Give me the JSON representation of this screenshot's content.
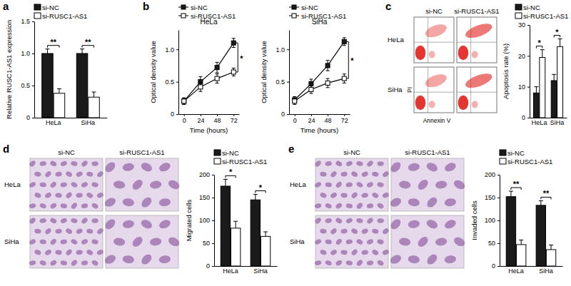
{
  "panels": [
    "a",
    "b",
    "c",
    "d",
    "e"
  ],
  "chart_data": [
    {
      "type": "bar",
      "categories": [
        "HeLa",
        "SiHa"
      ],
      "ylabel": "Relative RUSC1-AS1 expression",
      "series": [
        {
          "name": "si-NC",
          "color": "#1a1a1a",
          "values": [
            1.0,
            1.0
          ],
          "errors": [
            0.07,
            0.07
          ]
        },
        {
          "name": "si-RUSC1-AS1",
          "color": "#ffffff",
          "values": [
            0.38,
            0.32
          ],
          "errors": [
            0.07,
            0.08
          ]
        }
      ],
      "ylim": [
        0,
        1.5
      ],
      "yticks": [
        0,
        0.5,
        {
          "value": 1,
          "label": "1.0"
        },
        1.5
      ],
      "significance": [
        "**",
        "**"
      ],
      "legend": "upper left"
    },
    {
      "type": "line",
      "title": "HeLa",
      "xlabel": "Time (hours)",
      "ylabel": "Optical density value",
      "x": [
        0,
        24,
        48,
        72
      ],
      "series": [
        {
          "name": "si-NC",
          "color": "#1a1a1a",
          "marker": "square",
          "values": [
            0.2,
            0.5,
            0.72,
            1.1
          ],
          "errors": [
            0.05,
            0.08,
            0.08,
            0.07
          ]
        },
        {
          "name": "si-RUSC1-AS1",
          "color": "#ffffff",
          "marker": "square",
          "values": [
            0.2,
            0.42,
            0.55,
            0.65
          ],
          "errors": [
            0.05,
            0.07,
            0.07,
            0.06
          ]
        }
      ],
      "xlim": [
        -8,
        80
      ],
      "xticks": [
        0,
        24,
        48,
        72
      ],
      "ylim": [
        0,
        1.3
      ],
      "yticks": [
        0,
        0.5,
        {
          "value": 1,
          "label": "1.0"
        }
      ],
      "significance": "*",
      "legend": "upper left"
    },
    {
      "type": "line",
      "title": "SiHa",
      "xlabel": "Time (hours)",
      "ylabel": "Optical density value",
      "x": [
        0,
        24,
        48,
        72
      ],
      "series": [
        {
          "name": "si-NC",
          "color": "#1a1a1a",
          "marker": "square",
          "values": [
            0.22,
            0.47,
            0.75,
            1.12
          ],
          "errors": [
            0.05,
            0.07,
            0.08,
            0.06
          ]
        },
        {
          "name": "si-RUSC1-AS1",
          "color": "#ffffff",
          "marker": "square",
          "values": [
            0.2,
            0.38,
            0.48,
            0.55
          ],
          "errors": [
            0.05,
            0.06,
            0.07,
            0.07
          ]
        }
      ],
      "xlim": [
        -8,
        80
      ],
      "xticks": [
        0,
        24,
        48,
        72
      ],
      "ylim": [
        0,
        1.3
      ],
      "yticks": [
        0,
        0.5,
        {
          "value": 1,
          "label": "1.0"
        }
      ],
      "significance": "*",
      "legend": "upper left"
    },
    {
      "type": "bar",
      "categories": [
        "HeLa",
        "SiHa"
      ],
      "ylabel": "Apoptosis rate (%)",
      "series": [
        {
          "name": "si-NC",
          "color": "#1a1a1a",
          "values": [
            8,
            12
          ],
          "errors": [
            2,
            2
          ]
        },
        {
          "name": "si-RUSC1-AS1",
          "color": "#ffffff",
          "values": [
            19.5,
            23
          ],
          "errors": [
            2.5,
            2.5
          ]
        }
      ],
      "ylim": [
        0,
        30
      ],
      "yticks": [
        0,
        10,
        20,
        30
      ],
      "significance": [
        "*",
        "*"
      ],
      "legend": "upper left"
    },
    {
      "type": "bar",
      "categories": [
        "HeLa",
        "SiHa"
      ],
      "ylabel": "Migrated cells",
      "series": [
        {
          "name": "si-NC",
          "color": "#1a1a1a",
          "values": [
            175,
            145
          ],
          "errors": [
            15,
            12
          ]
        },
        {
          "name": "si-RUSC1-AS1",
          "color": "#ffffff",
          "values": [
            83,
            65
          ],
          "errors": [
            15,
            10
          ]
        }
      ],
      "ylim": [
        0,
        200
      ],
      "yticks": [
        0,
        50,
        100,
        150,
        200
      ],
      "significance": [
        "*",
        "*"
      ],
      "legend": "upper left"
    },
    {
      "type": "bar",
      "categories": [
        "HeLa",
        "SiHa"
      ],
      "ylabel": "Invaded cells",
      "series": [
        {
          "name": "si-NC",
          "color": "#1a1a1a",
          "values": [
            152,
            133
          ],
          "errors": [
            12,
            10
          ]
        },
        {
          "name": "si-RUSC1-AS1",
          "color": "#ffffff",
          "values": [
            47,
            36
          ],
          "errors": [
            10,
            10
          ]
        }
      ],
      "ylim": [
        0,
        200
      ],
      "yticks": [
        0,
        50,
        100,
        150,
        200
      ],
      "significance": [
        "**",
        "**"
      ],
      "legend": "upper left"
    }
  ],
  "image_panels": [
    {
      "kind": "flow",
      "columns": [
        "si-NC",
        "si-RUSC1-AS1"
      ],
      "rows": [
        "HeLa",
        "SiHa"
      ],
      "xlabel": "Annexin V",
      "ylabel": "PI"
    },
    {
      "kind": "micrograph",
      "columns": [
        "si-NC",
        "si-RUSC1-AS1"
      ],
      "rows": [
        "HeLa",
        "SiHa"
      ]
    },
    {
      "kind": "micrograph",
      "columns": [
        "si-NC",
        "si-RUSC1-AS1"
      ],
      "rows": [
        "HeLa",
        "SiHa"
      ]
    }
  ]
}
